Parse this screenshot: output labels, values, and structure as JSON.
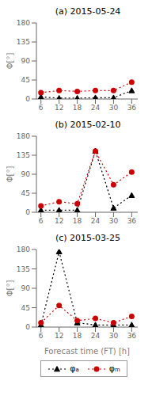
{
  "chart_data": [
    {
      "type": "line",
      "title": "(a) 2015-05-24",
      "x": [
        6,
        12,
        18,
        24,
        30,
        36
      ],
      "xlim": [
        4.5,
        38
      ],
      "xticks": [
        6,
        12,
        18,
        24,
        30,
        36
      ],
      "ylim": [
        0,
        180
      ],
      "yticks": [
        0,
        45,
        90,
        135,
        180
      ],
      "ylabel": "Φ[°]",
      "series": [
        {
          "name": "φₐ",
          "color": "#000000",
          "marker": "triangle",
          "line_style": "dotted",
          "values": [
            5,
            2,
            2,
            3,
            3,
            20
          ]
        },
        {
          "name": "φₘ",
          "color": "#cc0000",
          "marker": "circle",
          "line_style": "dotted",
          "values": [
            15,
            20,
            18,
            20,
            20,
            40
          ]
        }
      ]
    },
    {
      "type": "line",
      "title": "(b) 2015-02-10",
      "x": [
        6,
        12,
        18,
        24,
        30,
        36
      ],
      "xlim": [
        4.5,
        38
      ],
      "xticks": [
        6,
        12,
        18,
        24,
        30,
        36
      ],
      "ylim": [
        0,
        180
      ],
      "yticks": [
        0,
        45,
        90,
        135,
        180
      ],
      "ylabel": "Φ[°]",
      "series": [
        {
          "name": "φₐ",
          "color": "#000000",
          "marker": "triangle",
          "line_style": "dotted",
          "values": [
            5,
            5,
            5,
            145,
            10,
            40
          ]
        },
        {
          "name": "φₘ",
          "color": "#cc0000",
          "marker": "circle",
          "line_style": "dotted",
          "values": [
            15,
            25,
            20,
            145,
            65,
            95
          ]
        }
      ]
    },
    {
      "type": "line",
      "title": "(c) 2015-03-25",
      "x": [
        6,
        12,
        18,
        24,
        30,
        36
      ],
      "xlim": [
        4.5,
        38
      ],
      "xticks": [
        6,
        12,
        18,
        24,
        30,
        36
      ],
      "ylim": [
        0,
        180
      ],
      "yticks": [
        0,
        45,
        90,
        135,
        180
      ],
      "ylabel": "Φ[°]",
      "xlabel": "Forecast time (FT) [h]",
      "legend": "bottom",
      "series": [
        {
          "name": "φₐ",
          "color": "#000000",
          "marker": "triangle",
          "line_style": "dotted",
          "values": [
            5,
            175,
            10,
            5,
            5,
            5
          ]
        },
        {
          "name": "φₘ",
          "color": "#cc0000",
          "marker": "circle",
          "line_style": "dotted",
          "values": [
            10,
            50,
            15,
            20,
            10,
            25
          ]
        }
      ]
    }
  ]
}
